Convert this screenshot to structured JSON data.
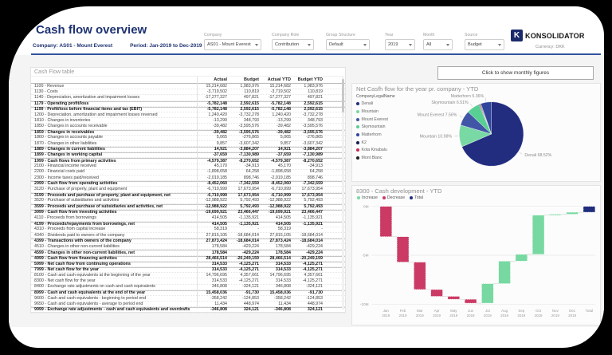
{
  "header": {
    "title": "Cash flow overview",
    "company_line": "Company: AS01 - Mount Everest",
    "period_line": "Period: Jan-2019 to Dec-2019",
    "logo_mark": "K",
    "logo_text": "KONSOLIDATOR",
    "currency": "Currency: DKK"
  },
  "filters": [
    {
      "label": "Company",
      "value": "AS01 - Mount Everest"
    },
    {
      "label": "Company Role",
      "value": "Contribution"
    },
    {
      "label": "Group Structure",
      "value": "Default"
    },
    {
      "label": "Year",
      "value": "2019"
    },
    {
      "label": "Month",
      "value": "All"
    },
    {
      "label": "Source",
      "value": "Budget"
    }
  ],
  "monthly_button": "Click to show monthly figures",
  "table": {
    "title": "Cash Flow table",
    "columns": [
      "",
      "Actual",
      "Budget",
      "Actual YTD",
      "Budget YTD"
    ],
    "rows": [
      [
        "1100 - Revenue",
        "15,214,682",
        "1,983,976",
        "15,214,682",
        "1,983,976",
        0
      ],
      [
        "1130 - Costs",
        "-3,719,502",
        "110,819",
        "-3,719,502",
        "110,819",
        0
      ],
      [
        "1140 - Depreciation, amortization and impairment losses",
        "-17,277,327",
        "497,821",
        "-17,277,327",
        "497,821",
        0
      ],
      [
        "1179 - Operating profit/loss",
        "-5,782,148",
        "2,592,615",
        "-5,782,148",
        "2,592,615",
        1
      ],
      [
        "1199 - Profit/loss before financial items and tax (EBIT)",
        "-5,782,148",
        "2,592,615",
        "-5,782,148",
        "2,592,615",
        1
      ],
      [
        "1200 - Depreciation, amortization and impairment losses reversed",
        "1,240,420",
        "-3,732,278",
        "1,240,420",
        "-3,732,278",
        0
      ],
      [
        "1810 - Changes in inventories",
        "-13,299",
        "348,793",
        "-13,299",
        "348,793",
        0
      ],
      [
        "1850 - Changes in accounts receivable",
        "-39,482",
        "-3,595,576",
        "-39,482",
        "-3,595,576",
        0
      ],
      [
        "1859 - Changes in receivables",
        "-39,482",
        "-3,595,576",
        "-39,482",
        "-3,595,576",
        1
      ],
      [
        "1860 - Changes in accounts payable",
        "5,065",
        "-276,865",
        "5,065",
        "-276,865",
        0
      ],
      [
        "1870 - Changes in other liabilities",
        "9,857",
        "-3,607,342",
        "9,857",
        "-3,607,342",
        0
      ],
      [
        "1889 - Changes in current liabilities",
        "14,921",
        "-3,884,207",
        "14,921",
        "-3,884,207",
        1
      ],
      [
        "1899 - Changes in working capital",
        "-37,659",
        "-7,130,989",
        "-37,659",
        "-7,130,989",
        1
      ],
      [
        "1999 - Cash flows from primary activities",
        "-4,579,387",
        "-8,270,652",
        "-4,579,387",
        "-8,270,652",
        1
      ],
      [
        "2100 - Financial income received",
        "45,170",
        "-34,913",
        "45,170",
        "-34,913",
        0
      ],
      [
        "2200 - Financial costs paid",
        "-1,898,658",
        "64,258",
        "-1,898,658",
        "64,258",
        0
      ],
      [
        "2300 - Income taxes paid/received",
        "-2,019,185",
        "898,746",
        "-2,019,185",
        "898,746",
        0
      ],
      [
        "2999 - Cash flow from operating activities",
        "-8,452,060",
        "-7,342,559",
        "-8,452,060",
        "-7,342,559",
        1
      ],
      [
        "3120 - Purchase of property, plant and equipment",
        "-6,710,999",
        "17,673,954",
        "-6,710,999",
        "17,673,954",
        0
      ],
      [
        "3199 - Proceeds and purchase of property, plant and equipment, net",
        "-6,710,999",
        "17,673,954",
        "-6,710,999",
        "17,673,954",
        1
      ],
      [
        "3520 - Purchase of subsidiaries and activities",
        "-12,988,922",
        "5,792,493",
        "-12,988,922",
        "5,792,493",
        0
      ],
      [
        "3599 - Proceeds and purchase of subsidiaries and activities, net",
        "-12,988,922",
        "5,792,493",
        "-12,988,922",
        "5,792,493",
        1
      ],
      [
        "3999 - Cash flow from investing activities",
        "-19,699,921",
        "23,466,447",
        "-19,699,921",
        "23,466,447",
        1
      ],
      [
        "4110 - Proceeds from borrowings",
        "414,505",
        "-1,135,921",
        "414,505",
        "-1,135,921",
        0
      ],
      [
        "4199 - Proceeds/repayments from borrowings, net",
        "414,505",
        "-1,135,921",
        "414,505",
        "-1,135,921",
        1
      ],
      [
        "4310 - Proceeds from capital increase",
        "58,319",
        "-",
        "58,319",
        "-",
        0
      ],
      [
        "4340 - Dividends paid to owners of the company",
        "27,815,105",
        "-18,684,014",
        "27,815,105",
        "-18,684,014",
        0
      ],
      [
        "4399 - Transactions with owners of the company",
        "27,873,424",
        "-18,684,014",
        "27,873,424",
        "-18,684,014",
        1
      ],
      [
        "4510 - Changes in other non-current liabilities",
        "178,584",
        "-429,224",
        "178,584",
        "-429,224",
        0
      ],
      [
        "4599 - Changes in other non-current liabilities, net",
        "178,584",
        "-429,224",
        "178,584",
        "-429,224",
        1
      ],
      [
        "4999 - Cash flow from financing activities",
        "28,466,514",
        "-20,249,159",
        "28,466,514",
        "-20,249,159",
        1
      ],
      [
        "5999 - Net cash flow from continuing operations",
        "314,533",
        "-4,125,271",
        "314,533",
        "-4,125,271",
        1
      ],
      [
        "7999 - Net cash flow for the year",
        "314,533",
        "-4,125,271",
        "314,533",
        "-4,125,271",
        1
      ],
      [
        "8100 - Cash and cash equivalents at the beginning of the year",
        "14,796,695",
        "4,357,661",
        "14,796,695",
        "4,357,661",
        0
      ],
      [
        "8300 - Net cash flow for the year",
        "314,533",
        "-4,125,271",
        "314,533",
        "-4,125,271",
        0
      ],
      [
        "8400 - Exchange rate adjustments on cash and cash equivalents",
        "346,808",
        "-324,121",
        "346,808",
        "-324,121",
        0
      ],
      [
        "8999 - Cash and cash equivalents at the end of the year",
        "15,458,036",
        "-91,730",
        "15,458,036",
        "-91,730",
        1
      ],
      [
        "9600 - Cash and cash equivalents - beginning to period end",
        "-358,242",
        "-124,853",
        "-358,242",
        "-124,853",
        0
      ],
      [
        "9650 - Cash and cash equivalents - average to period end",
        "11,434",
        "448,974",
        "11,434",
        "448,974",
        0
      ],
      [
        "9999 - Exchange rate adjustments - cash and cash equivalents and overdrafts",
        "-346,808",
        "324,121",
        "-346,808",
        "324,121",
        1
      ]
    ]
  },
  "chart_data": [
    {
      "type": "pie",
      "title": "Net Casfh flow for the year pr. company - YTD",
      "legend_title": "CompanyLegalName",
      "legend_position": "left",
      "slices": [
        {
          "name": "Denali",
          "pct": 68.52,
          "color": "#222d80",
          "labeled": true
        },
        {
          "name": "Mountain",
          "pct": 10.98,
          "color": "#79d9a4",
          "labeled": true
        },
        {
          "name": "Mount Everest",
          "pct": 7.56,
          "color": "#4156a6",
          "labeled": true
        },
        {
          "name": "Skymountain",
          "pct": 6.51,
          "color": "#58cf93",
          "labeled": true
        },
        {
          "name": "K2",
          "pct": 0.37,
          "color": "#141c4f",
          "labeled": false
        },
        {
          "name": "Kota Kinabalu",
          "pct": 0.35,
          "color": "#c62c53",
          "labeled": false
        },
        {
          "name": "Mont Blanc",
          "pct": 0.35,
          "color": "#1c1c1c",
          "labeled": false
        },
        {
          "name": "Matterhorn",
          "pct": 5.36,
          "color": "#31459c",
          "labeled": true
        }
      ],
      "legend_order": [
        "Denali",
        "Mountain",
        "Mount Everest",
        "Skymountain",
        "Matterhorn",
        "K2",
        "Kota Kinabalu",
        "Mont Blanc"
      ]
    },
    {
      "type": "waterfall",
      "title": "8300 - Cash development - YTD",
      "legend": [
        {
          "label": "Increase",
          "color": "#77d9a1"
        },
        {
          "label": "Decrease",
          "color": "#ca3a64"
        },
        {
          "label": "Total",
          "color": "#202e7d"
        }
      ],
      "x_labels": [
        "Jan 2019",
        "Feb 2019",
        "Mar 2019",
        "Apr 2019",
        "May 2019",
        "Jun 2019",
        "Jul 2019",
        "Aug 2019",
        "Sep 2019",
        "Oct 2019",
        "Nov 2019",
        "Dec 2019",
        "Total"
      ],
      "unit": "M DKK (approx.)",
      "y_ticks": [
        "0M",
        "-5M",
        "-10M"
      ],
      "y_tick_values": [
        0,
        -5,
        -10
      ],
      "ylim": [
        -10.5,
        0.5
      ],
      "deltas_m": [
        -3.1,
        -2.6,
        -2.8,
        -0.7,
        -0.3,
        -0.4,
        2.0,
        2.3,
        0.7,
        4.0,
        0.1,
        0.2
      ],
      "total_m": -0.6,
      "grid": true,
      "legend_position": "top-left"
    }
  ]
}
